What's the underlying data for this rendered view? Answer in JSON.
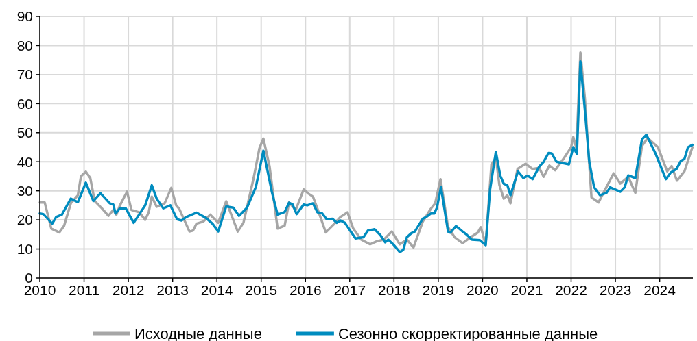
{
  "chart_data": {
    "type": "line",
    "xlim": [
      2010,
      2024.75
    ],
    "xticks": [
      2010,
      2011,
      2012,
      2013,
      2014,
      2015,
      2016,
      2017,
      2018,
      2019,
      2020,
      2021,
      2022,
      2023,
      2024
    ],
    "ylim": [
      0,
      90
    ],
    "yticks": [
      0,
      10,
      20,
      30,
      40,
      50,
      60,
      70,
      80,
      90
    ],
    "grid": true,
    "legend": "bottom",
    "marker": "none",
    "line_style": "solid",
    "series": [
      {
        "name": "Исходные данные",
        "color": "#a6a6a6",
        "x": [
          2010,
          2010.11,
          2010.26,
          2010.44,
          2010.55,
          2010.7,
          2010.86,
          2010.93,
          2011.04,
          2011.14,
          2011.24,
          2011.4,
          2011.55,
          2011.66,
          2011.73,
          2011.81,
          2011.97,
          2012.07,
          2012.25,
          2012.38,
          2012.46,
          2012.53,
          2012.64,
          2012.82,
          2012.97,
          2013.08,
          2013.15,
          2013.38,
          2013.46,
          2013.54,
          2013.69,
          2013.85,
          2014.03,
          2014.21,
          2014.47,
          2014.6,
          2014.83,
          2014.96,
          2015.05,
          2015.19,
          2015.37,
          2015.53,
          2015.63,
          2015.78,
          2015.96,
          2016.07,
          2016.17,
          2016.3,
          2016.46,
          2016.63,
          2016.79,
          2016.95,
          2017.08,
          2017.26,
          2017.46,
          2017.62,
          2017.77,
          2017.95,
          2018.13,
          2018.29,
          2018.44,
          2018.65,
          2018.83,
          2018.93,
          2019.05,
          2019.22,
          2019.37,
          2019.55,
          2019.73,
          2019.89,
          2019.96,
          2020.07,
          2020.2,
          2020.3,
          2020.38,
          2020.48,
          2020.56,
          2020.63,
          2020.79,
          2020.97,
          2021.13,
          2021.28,
          2021.38,
          2021.51,
          2021.64,
          2021.85,
          2022,
          2022.05,
          2022.12,
          2022.21,
          2022.31,
          2022.46,
          2022.62,
          2022.72,
          2022.96,
          2023.11,
          2023.29,
          2023.45,
          2023.6,
          2023.73,
          2023.96,
          2024.17,
          2024.27,
          2024.39,
          2024.56,
          2024.74
        ],
        "values": [
          26,
          26,
          17,
          15.7,
          18,
          25.7,
          28.5,
          35,
          36.6,
          34.4,
          26.5,
          24,
          21.4,
          23.4,
          21.8,
          25,
          29.7,
          23.4,
          22.6,
          20,
          22.6,
          28,
          24.5,
          25.7,
          31,
          25,
          23.8,
          16,
          16.3,
          18.7,
          19.4,
          21.8,
          19,
          26.4,
          16,
          19,
          34.4,
          44.6,
          48,
          38.3,
          17,
          18,
          26,
          23.4,
          30.5,
          29,
          28,
          22.6,
          15.7,
          18.3,
          21,
          22.6,
          17,
          13.2,
          11.6,
          12.7,
          13.2,
          16,
          11.6,
          13.2,
          10.5,
          19.4,
          23.8,
          25.7,
          34,
          17.5,
          14,
          12,
          14,
          15.6,
          17.5,
          11.6,
          39,
          41.5,
          32,
          27.3,
          28.5,
          25.7,
          37.5,
          39.3,
          37.5,
          37.9,
          34.8,
          38.7,
          37.1,
          41.5,
          45,
          48.5,
          44.6,
          77.6,
          62,
          27.7,
          26,
          29,
          36,
          32.5,
          34.8,
          29.3,
          45.4,
          48.2,
          45,
          36.7,
          38.5,
          33.5,
          36.7,
          45
        ]
      },
      {
        "name": "Сезонно скорректированные данные",
        "color": "#008cbf",
        "x": [
          2010,
          2010.08,
          2010.28,
          2010.37,
          2010.5,
          2010.7,
          2010.86,
          2011.04,
          2011.21,
          2011.37,
          2011.58,
          2011.66,
          2011.71,
          2011.81,
          2011.94,
          2012.12,
          2012.38,
          2012.53,
          2012.64,
          2012.79,
          2012.95,
          2013.1,
          2013.2,
          2013.31,
          2013.54,
          2013.75,
          2013.9,
          2014.03,
          2014.21,
          2014.37,
          2014.5,
          2014.68,
          2014.88,
          2015.05,
          2015.24,
          2015.37,
          2015.53,
          2015.63,
          2015.71,
          2015.8,
          2015.96,
          2016.04,
          2016.17,
          2016.27,
          2016.38,
          2016.48,
          2016.61,
          2016.71,
          2016.79,
          2016.89,
          2017.13,
          2017.31,
          2017.41,
          2017.56,
          2017.69,
          2017.8,
          2017.87,
          2018,
          2018.13,
          2018.21,
          2018.29,
          2018.39,
          2018.47,
          2018.65,
          2018.73,
          2018.83,
          2018.91,
          2018.97,
          2019.06,
          2019.22,
          2019.27,
          2019.4,
          2019.55,
          2019.65,
          2019.76,
          2019.94,
          2020.07,
          2020.17,
          2020.3,
          2020.4,
          2020.48,
          2020.56,
          2020.63,
          2020.8,
          2020.92,
          2021.02,
          2021.13,
          2021.28,
          2021.38,
          2021.49,
          2021.56,
          2021.67,
          2021.95,
          2022.05,
          2022.13,
          2022.21,
          2022.31,
          2022.41,
          2022.52,
          2022.65,
          2022.8,
          2022.88,
          2023.11,
          2023.21,
          2023.29,
          2023.45,
          2023.6,
          2023.7,
          2023.91,
          2024.14,
          2024.25,
          2024.38,
          2024.48,
          2024.56,
          2024.64,
          2024.74
        ],
        "values": [
          22.2,
          22,
          18.7,
          21,
          21.8,
          27.3,
          26.1,
          32.8,
          26.5,
          29.2,
          25.7,
          25.3,
          22.2,
          24,
          24,
          19,
          25,
          31.9,
          27.3,
          24,
          25,
          20.2,
          19.8,
          21,
          22.5,
          20.7,
          18.7,
          16,
          24.6,
          24.2,
          21.4,
          24.2,
          31.3,
          43.8,
          29.7,
          21.8,
          22.7,
          25.9,
          25.3,
          22,
          25.3,
          25,
          25.7,
          22.6,
          22.2,
          20.2,
          20.4,
          19,
          19.8,
          19,
          13.6,
          14,
          16.3,
          16.8,
          14.8,
          12.3,
          13.2,
          11.3,
          8.9,
          9.7,
          14,
          15.4,
          16,
          20.4,
          21,
          22.2,
          22.2,
          24.2,
          31.3,
          16,
          15.6,
          17.9,
          16,
          14.8,
          13.2,
          13,
          11.3,
          30.5,
          43.4,
          35.2,
          32.4,
          31.9,
          28.5,
          36.7,
          34.4,
          35.2,
          34,
          38.3,
          40,
          43,
          42.9,
          40,
          39.1,
          45,
          42.7,
          74.5,
          58,
          40,
          31.2,
          28.5,
          29.3,
          31.2,
          29.7,
          31.2,
          35.3,
          34.4,
          47.7,
          49.3,
          42.7,
          34,
          36.3,
          37.5,
          40.3,
          41,
          45,
          45.8
        ]
      }
    ]
  }
}
